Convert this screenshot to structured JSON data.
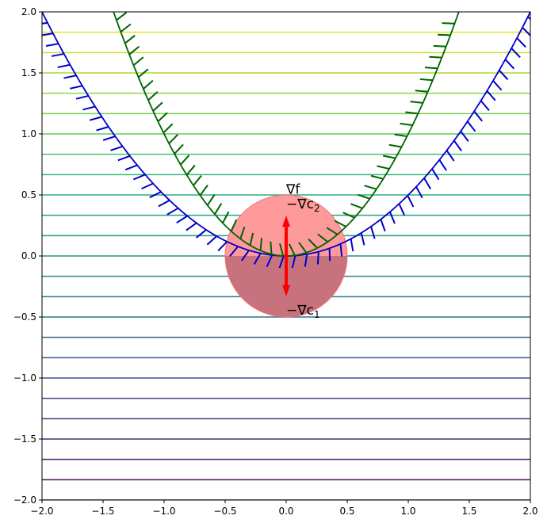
{
  "chart_data": {
    "type": "line",
    "title": "",
    "xlabel": "",
    "ylabel": "",
    "xlim": [
      -2.0,
      2.0
    ],
    "ylim": [
      -2.0,
      2.0
    ],
    "grid": false,
    "xticks": [
      "−2.0",
      "−1.5",
      "−1.0",
      "−0.5",
      "0.0",
      "0.5",
      "1.0",
      "1.5",
      "2.0"
    ],
    "yticks": [
      "−2.0",
      "−1.5",
      "−1.0",
      "−0.5",
      "0.0",
      "0.5",
      "1.0",
      "1.5",
      "2.0"
    ],
    "xtick_values": [
      -2,
      -1.5,
      -1,
      -0.5,
      0,
      0.5,
      1,
      1.5,
      2
    ],
    "ytick_values": [
      -2,
      -1.5,
      -1,
      -0.5,
      0,
      0.5,
      1,
      1.5,
      2
    ],
    "contours": {
      "function": "f(x,y) = y",
      "colormap": "viridis",
      "levels": [
        -2.0,
        -1.8333,
        -1.6667,
        -1.5,
        -1.3333,
        -1.1667,
        -1.0,
        -0.8333,
        -0.6667,
        -0.5,
        -0.3333,
        -0.1667,
        0.0,
        0.1667,
        0.3333,
        0.5,
        0.6667,
        0.8333,
        1.0,
        1.1667,
        1.3333,
        1.5,
        1.6667,
        1.8333
      ]
    },
    "constraints": [
      {
        "name": "c1",
        "equation": "y = x^2 / 2",
        "color": "#0000cc",
        "hatch_side": "outside"
      },
      {
        "name": "c2",
        "equation": "y = x^2",
        "color": "#006400",
        "hatch_side": "inside"
      }
    ],
    "circle": {
      "center": [
        0,
        0
      ],
      "radius": 0.5,
      "upper_color": "#ff9a9a",
      "lower_color": "#c8727e",
      "edge_color": "#f07070"
    },
    "arrows": [
      {
        "from": [
          0,
          0
        ],
        "to": [
          0,
          0.33
        ],
        "color": "#ff0000"
      },
      {
        "from": [
          0,
          0
        ],
        "to": [
          0,
          -0.33
        ],
        "color": "#ff0000"
      }
    ],
    "annotations": [
      {
        "text": "∇f",
        "x": 0.0,
        "y": 0.55
      },
      {
        "text": "−∇c",
        "sub": "2",
        "x": 0.0,
        "y": 0.43
      },
      {
        "text": "−∇c",
        "sub": "1",
        "x": 0.0,
        "y": -0.44
      }
    ]
  }
}
